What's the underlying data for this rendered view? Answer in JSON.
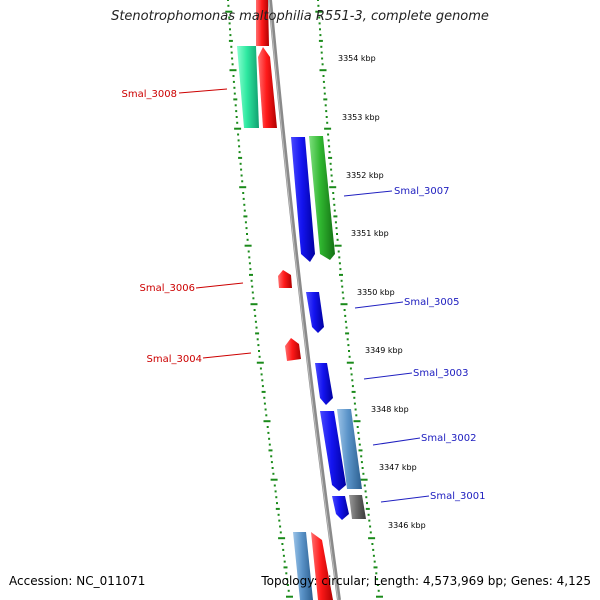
{
  "title": "Stenotrophomonas maltophilia R551-3, complete genome",
  "accession": "Accession: NC_011071",
  "summary": "Topology: circular; Length: 4,573,969 bp; Genes: 4,125",
  "colors": {
    "backbone": "#888888",
    "ticks": "#1a8a1a",
    "forward_label": "#2020c0",
    "reverse_label": "#cc0000"
  },
  "ticks": [
    {
      "label": "3354 kbp"
    },
    {
      "label": "3353 kbp"
    },
    {
      "label": "3352 kbp"
    },
    {
      "label": "3351 kbp"
    },
    {
      "label": "3350 kbp"
    },
    {
      "label": "3349 kbp"
    },
    {
      "label": "3348 kbp"
    },
    {
      "label": "3347 kbp"
    },
    {
      "label": "3346 kbp"
    }
  ],
  "gene_labels": [
    {
      "name": "Smal_3008",
      "strand": "reverse"
    },
    {
      "name": "Smal_3007",
      "strand": "forward"
    },
    {
      "name": "Smal_3006",
      "strand": "reverse"
    },
    {
      "name": "Smal_3005",
      "strand": "forward"
    },
    {
      "name": "Smal_3004",
      "strand": "reverse"
    },
    {
      "name": "Smal_3003",
      "strand": "forward"
    },
    {
      "name": "Smal_3002",
      "strand": "forward"
    },
    {
      "name": "Smal_3001",
      "strand": "forward"
    }
  ]
}
